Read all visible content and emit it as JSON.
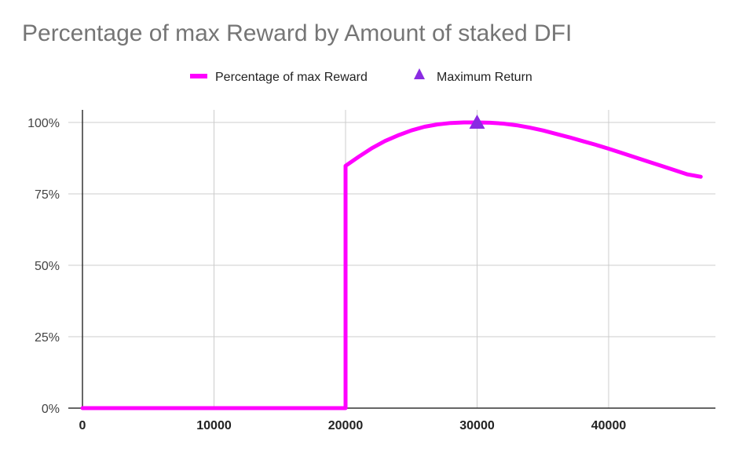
{
  "chart_data": {
    "type": "line",
    "title": "Percentage of max Reward by Amount of staked DFI",
    "xlabel": "",
    "ylabel": "",
    "xlim": [
      0,
      48000
    ],
    "ylim": [
      0,
      1
    ],
    "x_ticks": [
      0,
      10000,
      20000,
      30000,
      40000
    ],
    "y_ticks": [
      0,
      0.25,
      0.5,
      0.75,
      1.0
    ],
    "x_tick_labels": [
      "0",
      "10000",
      "20000",
      "30000",
      "40000"
    ],
    "y_tick_labels": [
      "0%",
      "25%",
      "50%",
      "75%",
      "100%"
    ],
    "grid": true,
    "legend_position": "top",
    "series": [
      {
        "name": "Percentage of max Reward",
        "color": "#ff00ff",
        "marker": "none",
        "points": [
          [
            0,
            0
          ],
          [
            20000,
            0
          ],
          [
            20000,
            0.848
          ],
          [
            21000,
            0.88
          ],
          [
            22000,
            0.91
          ],
          [
            23000,
            0.935
          ],
          [
            24000,
            0.955
          ],
          [
            25000,
            0.972
          ],
          [
            26000,
            0.985
          ],
          [
            27000,
            0.993
          ],
          [
            28000,
            0.998
          ],
          [
            29000,
            1.0
          ],
          [
            30000,
            1.0
          ],
          [
            31000,
            0.999
          ],
          [
            32000,
            0.996
          ],
          [
            33000,
            0.99
          ],
          [
            34000,
            0.982
          ],
          [
            35000,
            0.972
          ],
          [
            36000,
            0.96
          ],
          [
            37000,
            0.948
          ],
          [
            38000,
            0.935
          ],
          [
            39000,
            0.922
          ],
          [
            40000,
            0.908
          ],
          [
            41000,
            0.893
          ],
          [
            42000,
            0.878
          ],
          [
            43000,
            0.863
          ],
          [
            44000,
            0.848
          ],
          [
            45000,
            0.833
          ],
          [
            46000,
            0.818
          ],
          [
            47000,
            0.81
          ]
        ]
      },
      {
        "name": "Maximum Return",
        "color": "#8a2be2",
        "marker": "triangle",
        "points": [
          [
            30000,
            1.0
          ]
        ]
      }
    ]
  }
}
